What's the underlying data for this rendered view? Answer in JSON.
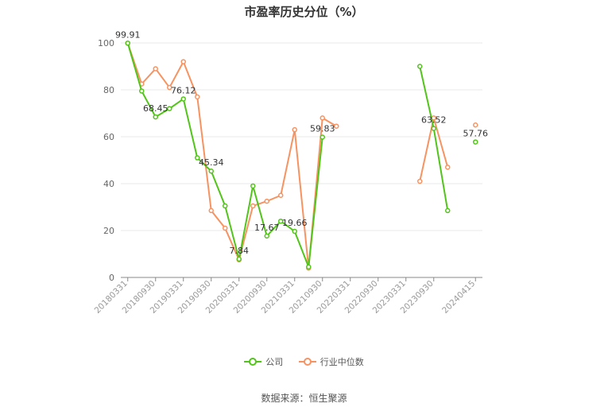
{
  "chart_data": {
    "type": "line",
    "title": "市盈率历史分位（%）",
    "categories": [
      "20180331",
      "20180630",
      "20180930",
      "20181231",
      "20190331",
      "20190630",
      "20190930",
      "20191231",
      "20200331",
      "20200630",
      "20200930",
      "20201231",
      "20210331",
      "20210630",
      "20210930",
      "20211231",
      "20220331",
      "20220630",
      "20220930",
      "20221231",
      "20230331",
      "20230630",
      "20230930",
      "20231231",
      "20240331",
      "20240415"
    ],
    "tick_labels": [
      "20180331",
      "20180930",
      "20190331",
      "20190930",
      "20200331",
      "20200930",
      "20210331",
      "20210930",
      "20220331",
      "20220930",
      "20230331",
      "20230930",
      "20240415"
    ],
    "tick_indices": [
      0,
      2,
      4,
      6,
      8,
      10,
      12,
      14,
      16,
      18,
      20,
      22,
      25
    ],
    "ylim": [
      0,
      100
    ],
    "yticks": [
      "0",
      "20",
      "40",
      "60",
      "80",
      "100"
    ],
    "grid": true,
    "legend_position": "bottom",
    "series": [
      {
        "name": "公司",
        "color": "#52c41a",
        "values": [
          99.91,
          79.5,
          68.45,
          72.0,
          76.12,
          51.0,
          45.34,
          30.5,
          7.84,
          39.0,
          17.67,
          24.0,
          19.66,
          4.5,
          59.83,
          null,
          null,
          null,
          null,
          null,
          null,
          90.0,
          63.52,
          28.5,
          null,
          57.76
        ]
      },
      {
        "name": "行业中位数",
        "color": "#f79361",
        "values": [
          99.91,
          82.5,
          89.0,
          81.0,
          92.0,
          77.0,
          28.5,
          21.0,
          7.5,
          30.5,
          32.5,
          35.0,
          63.0,
          4.0,
          68.0,
          64.5,
          null,
          null,
          null,
          null,
          null,
          41.0,
          68.0,
          47.0,
          null,
          65.0
        ]
      }
    ],
    "data_labels": [
      {
        "series": 0,
        "index": 0,
        "text": "99.91"
      },
      {
        "series": 0,
        "index": 2,
        "text": "68.45"
      },
      {
        "series": 0,
        "index": 4,
        "text": "76.12"
      },
      {
        "series": 0,
        "index": 6,
        "text": "45.34"
      },
      {
        "series": 0,
        "index": 8,
        "text": "7.84"
      },
      {
        "series": 0,
        "index": 10,
        "text": "17.67"
      },
      {
        "series": 0,
        "index": 12,
        "text": "19.66"
      },
      {
        "series": 0,
        "index": 14,
        "text": "59.83"
      },
      {
        "series": 0,
        "index": 22,
        "text": "63.52"
      },
      {
        "series": 0,
        "index": 25,
        "text": "57.76"
      }
    ]
  },
  "legend": {
    "company_label": "公司",
    "industry_label": "行业中位数",
    "company_color": "#52c41a",
    "industry_color": "#f79361"
  },
  "source": "数据来源：恒生聚源"
}
